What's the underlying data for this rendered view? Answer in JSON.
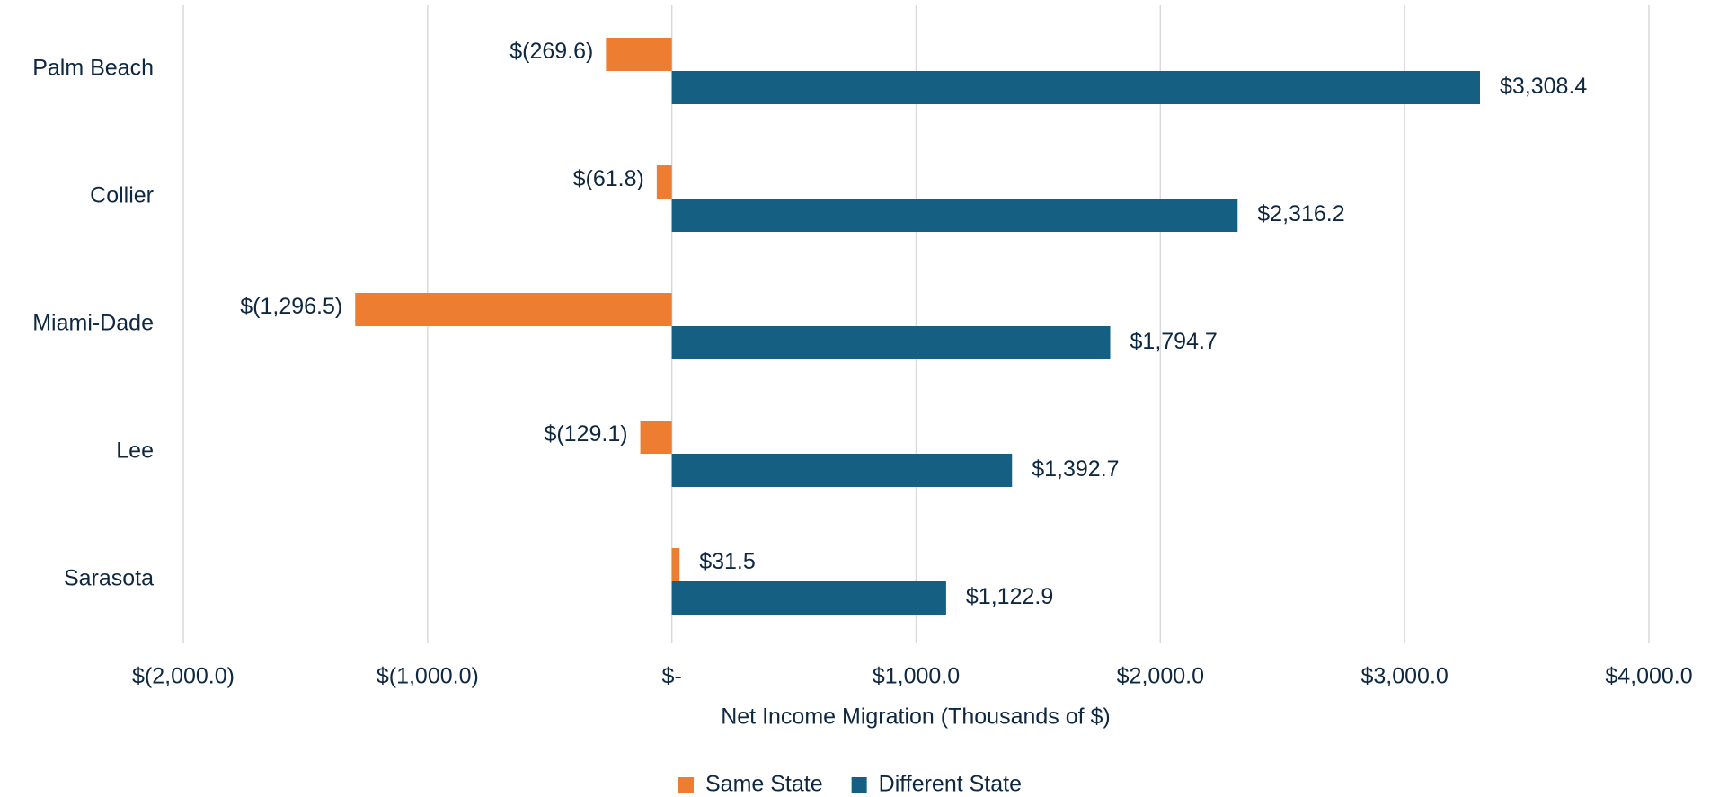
{
  "chart_data": {
    "type": "bar",
    "orientation": "horizontal",
    "x_label": "Net Income Migration (Thousands of $)",
    "categories": [
      "Palm Beach",
      "Collier",
      "Miami-Dade",
      "Lee",
      "Sarasota"
    ],
    "series": [
      {
        "name": "Same State",
        "color": "#ed7d31",
        "values": [
          -269.6,
          -61.8,
          -1296.5,
          -129.1,
          31.5
        ],
        "value_labels": [
          "$(269.6)",
          "$(61.8)",
          "$(1,296.5)",
          "$(129.1)",
          "$31.5"
        ]
      },
      {
        "name": "Different State",
        "color": "#156082",
        "values": [
          3308.4,
          2316.2,
          1794.7,
          1392.7,
          1122.9
        ],
        "value_labels": [
          "$3,308.4",
          "$2,316.2",
          "$1,794.7",
          "$1,392.7",
          "$1,122.9"
        ]
      }
    ],
    "xlim": [
      -2000,
      4000
    ],
    "xticks": [
      {
        "value": -2000,
        "label": "$(2,000.0)"
      },
      {
        "value": -1000,
        "label": "$(1,000.0)"
      },
      {
        "value": 0,
        "label": "$-"
      },
      {
        "value": 1000,
        "label": "$1,000.0"
      },
      {
        "value": 2000,
        "label": "$2,000.0"
      },
      {
        "value": 3000,
        "label": "$3,000.0"
      },
      {
        "value": 4000,
        "label": "$4,000.0"
      }
    ],
    "grid": true,
    "legend": "bottom"
  }
}
